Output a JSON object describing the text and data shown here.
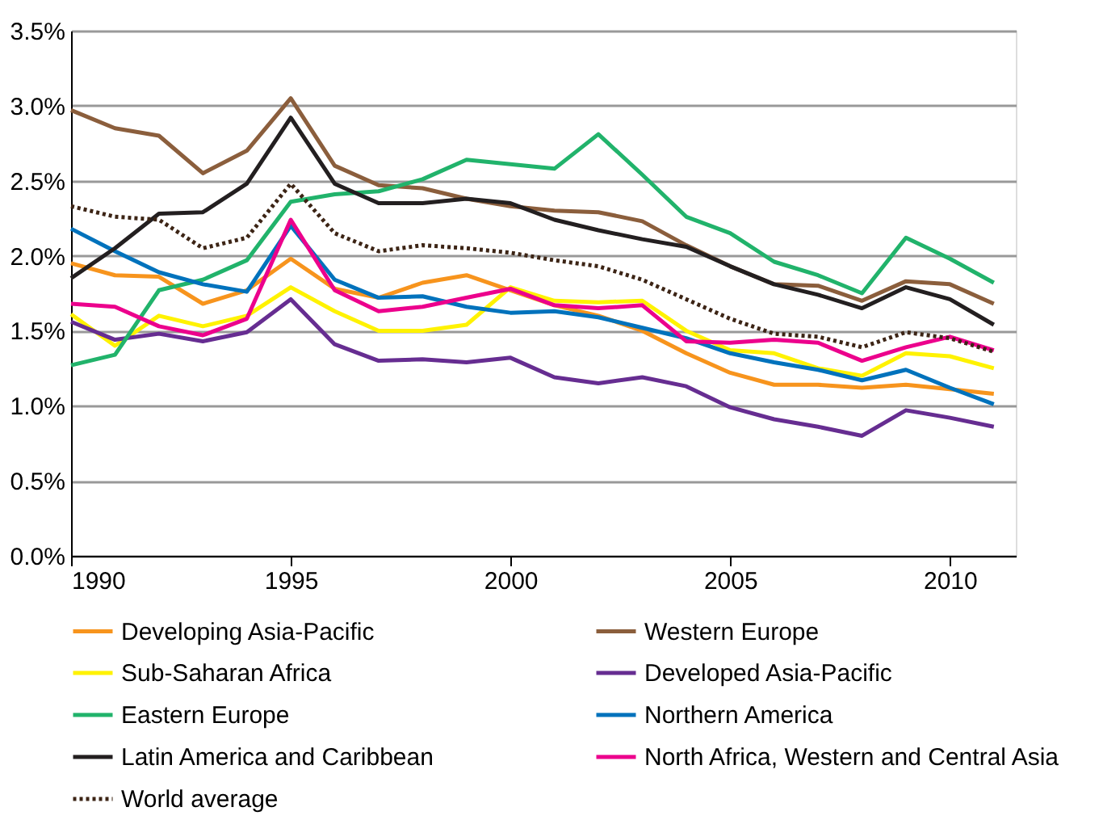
{
  "chart_data": {
    "type": "line",
    "x": [
      1990,
      1991,
      1992,
      1993,
      1994,
      1995,
      1996,
      1997,
      1998,
      1999,
      2000,
      2001,
      2002,
      2003,
      2004,
      2005,
      2006,
      2007,
      2008,
      2009,
      2010,
      2011
    ],
    "series": [
      {
        "name": "Developing Asia-Pacific",
        "color": "#f7941d",
        "values": [
          1.95,
          1.87,
          1.86,
          1.68,
          1.77,
          1.98,
          1.78,
          1.72,
          1.82,
          1.87,
          1.77,
          1.67,
          1.6,
          1.5,
          1.35,
          1.22,
          1.14,
          1.14,
          1.12,
          1.14,
          1.11,
          1.08
        ]
      },
      {
        "name": "Western Europe",
        "color": "#8b5e3c",
        "values": [
          2.97,
          2.85,
          2.8,
          2.55,
          2.7,
          3.05,
          2.6,
          2.47,
          2.45,
          2.38,
          2.33,
          2.3,
          2.29,
          2.23,
          2.07,
          1.93,
          1.81,
          1.8,
          1.7,
          1.83,
          1.81,
          1.68
        ]
      },
      {
        "name": "Sub-Saharan Africa",
        "color": "#fff200",
        "values": [
          1.61,
          1.4,
          1.6,
          1.53,
          1.6,
          1.79,
          1.63,
          1.5,
          1.5,
          1.54,
          1.79,
          1.7,
          1.69,
          1.7,
          1.5,
          1.37,
          1.35,
          1.25,
          1.2,
          1.35,
          1.33,
          1.25
        ]
      },
      {
        "name": "Developed Asia-Pacific",
        "color": "#662d91",
        "values": [
          1.56,
          1.44,
          1.48,
          1.43,
          1.49,
          1.71,
          1.41,
          1.3,
          1.31,
          1.29,
          1.32,
          1.19,
          1.15,
          1.19,
          1.13,
          0.99,
          0.91,
          0.86,
          0.8,
          0.97,
          0.92,
          0.86
        ]
      },
      {
        "name": "Eastern Europe",
        "color": "#21b36b",
        "values": [
          1.27,
          1.34,
          1.77,
          1.84,
          1.97,
          2.36,
          2.41,
          2.43,
          2.51,
          2.64,
          2.61,
          2.58,
          2.81,
          2.54,
          2.26,
          2.15,
          1.96,
          1.87,
          1.75,
          2.12,
          1.98,
          1.82
        ]
      },
      {
        "name": "Northern America",
        "color": "#0072bc",
        "values": [
          2.18,
          2.03,
          1.89,
          1.81,
          1.76,
          2.2,
          1.84,
          1.72,
          1.73,
          1.66,
          1.62,
          1.63,
          1.59,
          1.52,
          1.45,
          1.35,
          1.29,
          1.24,
          1.17,
          1.24,
          1.12,
          1.01
        ]
      },
      {
        "name": "Latin America and Caribbean",
        "color": "#231f20",
        "values": [
          1.85,
          2.05,
          2.28,
          2.29,
          2.48,
          2.92,
          2.48,
          2.35,
          2.35,
          2.38,
          2.35,
          2.24,
          2.17,
          2.11,
          2.06,
          1.93,
          1.81,
          1.74,
          1.65,
          1.79,
          1.71,
          1.54
        ]
      },
      {
        "name": "North Africa, Western and Central Asia",
        "color": "#ec008c",
        "values": [
          1.68,
          1.66,
          1.53,
          1.47,
          1.58,
          2.24,
          1.77,
          1.63,
          1.66,
          1.72,
          1.78,
          1.67,
          1.65,
          1.67,
          1.43,
          1.42,
          1.44,
          1.42,
          1.3,
          1.39,
          1.46,
          1.37
        ]
      },
      {
        "name": "World average",
        "color": "#3c2415",
        "line_style": "dashed",
        "values": [
          2.33,
          2.26,
          2.24,
          2.05,
          2.12,
          2.48,
          2.15,
          2.03,
          2.07,
          2.05,
          2.02,
          1.97,
          1.93,
          1.84,
          1.71,
          1.58,
          1.48,
          1.46,
          1.39,
          1.49,
          1.45,
          1.36
        ]
      }
    ],
    "xlim": [
      1990,
      2011.5
    ],
    "xticks": [
      1990,
      1995,
      2000,
      2005,
      2010
    ],
    "ylim": [
      0,
      3.5
    ],
    "yticks": [
      {
        "value": 0,
        "label": "0.0%"
      },
      {
        "value": 0.5,
        "label": "0.5%"
      },
      {
        "value": 1,
        "label": "1.0%"
      },
      {
        "value": 1.5,
        "label": "1.5%"
      },
      {
        "value": 2,
        "label": "2.0%"
      },
      {
        "value": 2.5,
        "label": "2.5%"
      },
      {
        "value": 3,
        "label": "3.0%"
      },
      {
        "value": 3.5,
        "label": "3.5%"
      }
    ],
    "grid": "y",
    "legend": "bottom",
    "marker": "none"
  }
}
